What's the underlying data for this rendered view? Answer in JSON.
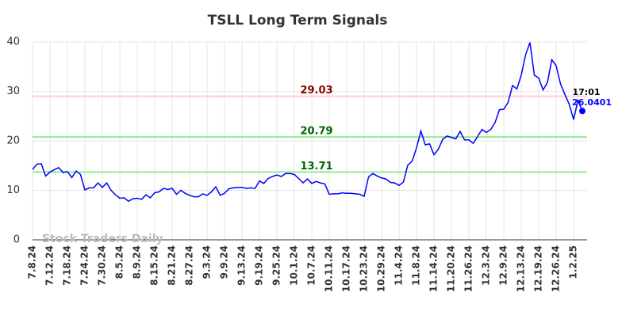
{
  "chart_data": {
    "type": "line",
    "title": "TSLL Long Term Signals",
    "watermark": "Stock Traders Daily",
    "color": "#0000ff",
    "grid": true,
    "ylim": [
      0,
      40
    ],
    "yticks": [
      0,
      10,
      20,
      30,
      40
    ],
    "categories": [
      "7.8.24",
      null,
      null,
      null,
      "7.12.24",
      null,
      null,
      null,
      "7.18.24",
      null,
      null,
      null,
      "7.24.24",
      null,
      null,
      null,
      "7.30.24",
      null,
      null,
      null,
      "8.5.24",
      null,
      null,
      null,
      "8.9.24",
      null,
      null,
      null,
      "8.15.24",
      null,
      null,
      null,
      "8.21.24",
      null,
      null,
      null,
      "8.27.24",
      null,
      null,
      null,
      "9.3.24",
      null,
      null,
      null,
      "9.9.24",
      null,
      null,
      null,
      "9.13.24",
      null,
      null,
      null,
      "9.19.24",
      null,
      null,
      null,
      "9.25.24",
      null,
      null,
      null,
      "10.1.24",
      null,
      null,
      null,
      "10.7.24",
      null,
      null,
      null,
      "10.11.24",
      null,
      null,
      null,
      "10.17.24",
      null,
      null,
      null,
      "10.23.24",
      null,
      null,
      null,
      "10.29.24",
      null,
      null,
      null,
      "11.4.24",
      null,
      null,
      null,
      "11.8.24",
      null,
      null,
      null,
      "11.14.24",
      null,
      null,
      null,
      "11.20.24",
      null,
      null,
      null,
      "11.26.24",
      null,
      null,
      null,
      "12.3.24",
      null,
      null,
      null,
      "12.9.24",
      null,
      null,
      null,
      "12.13.24",
      null,
      null,
      null,
      "12.19.24",
      null,
      null,
      null,
      "12.26.24",
      null,
      null,
      null,
      "1.2.25",
      null,
      null
    ],
    "values": [
      14.2,
      15.3,
      15.4,
      12.9,
      13.7,
      14.2,
      14.6,
      13.6,
      13.8,
      12.6,
      13.9,
      13.2,
      10.1,
      10.5,
      10.5,
      11.5,
      10.6,
      11.5,
      10.0,
      9.1,
      8.4,
      8.5,
      7.8,
      8.3,
      8.4,
      8.2,
      9.1,
      8.5,
      9.5,
      9.7,
      10.4,
      10.2,
      10.4,
      9.2,
      10.0,
      9.4,
      9.0,
      8.7,
      8.7,
      9.3,
      9.0,
      9.7,
      10.7,
      9.0,
      9.4,
      10.3,
      10.5,
      10.6,
      10.6,
      10.4,
      10.5,
      10.4,
      11.9,
      11.4,
      12.4,
      12.8,
      13.1,
      12.8,
      13.4,
      13.4,
      13.2,
      12.4,
      11.5,
      12.3,
      11.4,
      11.8,
      11.5,
      11.3,
      9.2,
      9.3,
      9.3,
      9.5,
      9.4,
      9.4,
      9.3,
      9.2,
      8.8,
      12.7,
      13.4,
      12.9,
      12.5,
      12.3,
      11.6,
      11.5,
      11.0,
      11.7,
      15.1,
      15.9,
      18.6,
      22.0,
      19.2,
      19.4,
      17.2,
      18.3,
      20.3,
      21.0,
      20.7,
      20.4,
      21.9,
      20.2,
      20.2,
      19.5,
      20.9,
      22.3,
      21.7,
      22.3,
      23.7,
      26.3,
      26.4,
      27.8,
      31.2,
      30.5,
      33.3,
      37.4,
      39.9,
      33.3,
      32.7,
      30.3,
      31.8,
      36.4,
      35.2,
      31.5,
      29.4,
      27.4,
      24.3,
      28.2,
      26.0401
    ],
    "hlines": [
      {
        "value": 29.03,
        "line_color": "#ffcccc",
        "label_color": "#8b0000"
      },
      {
        "value": 20.79,
        "line_color": "#90ee90",
        "label_color": "#006400"
      },
      {
        "value": 13.71,
        "line_color": "#90ee90",
        "label_color": "#006400"
      }
    ],
    "last_time": "17:01",
    "last_value": 26.0401
  }
}
